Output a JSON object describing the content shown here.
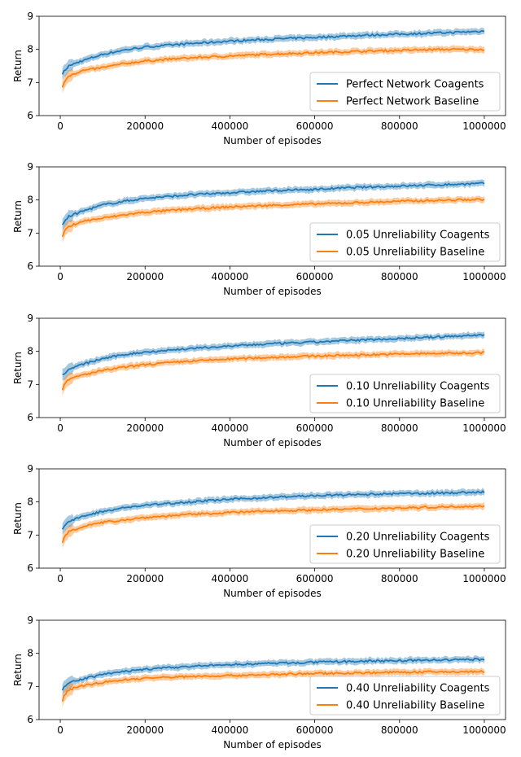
{
  "figure": {
    "colors": {
      "coagents": "#1f77b4",
      "baseline": "#ff7f0e"
    }
  },
  "chart_data": [
    {
      "type": "line",
      "xlabel": "Number of episodes",
      "ylabel": "Return",
      "xlim": [
        -50000,
        1050000
      ],
      "ylim": [
        6,
        9
      ],
      "xticks": [
        "0",
        "200000",
        "400000",
        "600000",
        "800000",
        "1000000"
      ],
      "yticks": [
        "6",
        "7",
        "8",
        "9"
      ],
      "legend_position": "lower-right",
      "x": [
        0,
        10000,
        20000,
        50000,
        100000,
        150000,
        200000,
        300000,
        400000,
        500000,
        600000,
        700000,
        800000,
        900000,
        1000000
      ],
      "series": [
        {
          "name": "Perfect Network Coagents",
          "values": [
            7.2,
            7.35,
            7.5,
            7.65,
            7.85,
            7.98,
            8.07,
            8.17,
            8.25,
            8.31,
            8.36,
            8.42,
            8.46,
            8.5,
            8.55
          ]
        },
        {
          "name": "Perfect Network Baseline",
          "values": [
            6.7,
            7.05,
            7.2,
            7.35,
            7.45,
            7.57,
            7.65,
            7.74,
            7.8,
            7.86,
            7.9,
            7.94,
            7.97,
            8.0,
            8.0
          ]
        }
      ]
    },
    {
      "type": "line",
      "xlabel": "Number of episodes",
      "ylabel": "Return",
      "xlim": [
        -50000,
        1050000
      ],
      "ylim": [
        6,
        9
      ],
      "xticks": [
        "0",
        "200000",
        "400000",
        "600000",
        "800000",
        "1000000"
      ],
      "yticks": [
        "6",
        "7",
        "8",
        "9"
      ],
      "legend_position": "lower-right",
      "x": [
        0,
        10000,
        20000,
        50000,
        100000,
        150000,
        200000,
        300000,
        400000,
        500000,
        600000,
        700000,
        800000,
        900000,
        1000000
      ],
      "series": [
        {
          "name": "0.05 Unreliability Coagents",
          "values": [
            7.2,
            7.35,
            7.5,
            7.65,
            7.85,
            7.96,
            8.05,
            8.15,
            8.22,
            8.28,
            8.32,
            8.38,
            8.42,
            8.46,
            8.5
          ]
        },
        {
          "name": "0.05 Unreliability Baseline",
          "values": [
            6.75,
            7.05,
            7.2,
            7.35,
            7.45,
            7.55,
            7.63,
            7.72,
            7.79,
            7.84,
            7.88,
            7.92,
            7.96,
            7.99,
            8.02
          ]
        }
      ]
    },
    {
      "type": "line",
      "xlabel": "Number of episodes",
      "ylabel": "Return",
      "xlim": [
        -50000,
        1050000
      ],
      "ylim": [
        6,
        9
      ],
      "xticks": [
        "0",
        "200000",
        "400000",
        "600000",
        "800000",
        "1000000"
      ],
      "yticks": [
        "6",
        "7",
        "8",
        "9"
      ],
      "legend_position": "lower-right",
      "x": [
        0,
        10000,
        20000,
        50000,
        100000,
        150000,
        200000,
        300000,
        400000,
        500000,
        600000,
        700000,
        800000,
        900000,
        1000000
      ],
      "series": [
        {
          "name": "0.10 Unreliability Coagents",
          "values": [
            7.2,
            7.35,
            7.45,
            7.6,
            7.78,
            7.9,
            7.98,
            8.08,
            8.16,
            8.23,
            8.28,
            8.34,
            8.39,
            8.44,
            8.5
          ]
        },
        {
          "name": "0.10 Unreliability Baseline",
          "values": [
            6.65,
            7.0,
            7.15,
            7.28,
            7.42,
            7.52,
            7.6,
            7.7,
            7.77,
            7.82,
            7.86,
            7.89,
            7.92,
            7.94,
            7.96
          ]
        }
      ]
    },
    {
      "type": "line",
      "xlabel": "Number of episodes",
      "ylabel": "Return",
      "xlim": [
        -50000,
        1050000
      ],
      "ylim": [
        6,
        9
      ],
      "xticks": [
        "0",
        "200000",
        "400000",
        "600000",
        "800000",
        "1000000"
      ],
      "yticks": [
        "6",
        "7",
        "8",
        "9"
      ],
      "legend_position": "lower-right",
      "x": [
        0,
        10000,
        20000,
        50000,
        100000,
        150000,
        200000,
        300000,
        400000,
        500000,
        600000,
        700000,
        800000,
        900000,
        1000000
      ],
      "series": [
        {
          "name": "0.20 Unreliability Coagents",
          "values": [
            7.1,
            7.3,
            7.4,
            7.55,
            7.72,
            7.82,
            7.9,
            8.0,
            8.08,
            8.14,
            8.19,
            8.22,
            8.25,
            8.27,
            8.3
          ]
        },
        {
          "name": "0.20 Unreliability Baseline",
          "values": [
            6.6,
            6.95,
            7.1,
            7.25,
            7.38,
            7.46,
            7.53,
            7.62,
            7.68,
            7.73,
            7.76,
            7.79,
            7.82,
            7.85,
            7.88
          ]
        }
      ]
    },
    {
      "type": "line",
      "xlabel": "Number of episodes",
      "ylabel": "Return",
      "xlim": [
        -50000,
        1050000
      ],
      "ylim": [
        6,
        9
      ],
      "xticks": [
        "0",
        "200000",
        "400000",
        "600000",
        "800000",
        "1000000"
      ],
      "yticks": [
        "6",
        "7",
        "8",
        "9"
      ],
      "legend_position": "lower-right",
      "x": [
        0,
        10000,
        20000,
        50000,
        100000,
        150000,
        200000,
        300000,
        400000,
        500000,
        600000,
        700000,
        800000,
        900000,
        1000000
      ],
      "series": [
        {
          "name": "0.40 Unreliability Coagents",
          "values": [
            6.8,
            7.0,
            7.1,
            7.22,
            7.36,
            7.45,
            7.52,
            7.6,
            7.66,
            7.7,
            7.73,
            7.76,
            7.78,
            7.8,
            7.82
          ]
        },
        {
          "name": "0.40 Unreliability Baseline",
          "values": [
            6.3,
            6.75,
            6.9,
            7.02,
            7.12,
            7.2,
            7.25,
            7.3,
            7.33,
            7.36,
            7.39,
            7.41,
            7.43,
            7.44,
            7.45
          ]
        }
      ]
    }
  ]
}
